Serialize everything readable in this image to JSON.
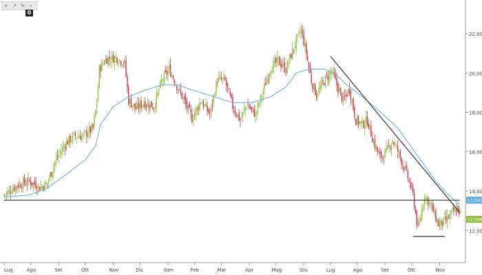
{
  "toolbar": {
    "icons": [
      "plus-icon",
      "pointer-icon",
      "pencil-icon",
      "magnifier-icon"
    ],
    "glyphs": [
      "+",
      "↗",
      "✎",
      "⌕"
    ],
    "badge": "0"
  },
  "chart_data": {
    "type": "candlestick",
    "title": "",
    "xlabel": "",
    "ylabel": "",
    "ylim": [
      10.6,
      23.0
    ],
    "grid": false,
    "legend": "none",
    "y_ticks": [
      12,
      14,
      16,
      18,
      20,
      22
    ],
    "y_tick_labels": [
      "12,00",
      "14,00",
      "16,00",
      "18,00",
      "20,00",
      "22,00"
    ],
    "x_tick_labels": [
      "Lug",
      "Ago",
      "Set",
      "Ott",
      "Nov",
      "Dic",
      "Gen",
      "Feb",
      "Mar",
      "Apr",
      "Mag",
      "Giu",
      "Lug",
      "Ago",
      "Set",
      "Ott",
      "Nov"
    ],
    "x_tick_index": [
      0,
      21,
      43,
      64,
      86,
      107,
      129,
      150,
      171,
      193,
      214,
      236,
      257,
      278,
      300,
      321,
      343
    ],
    "bar_count": 360,
    "price_path": [
      [
        0,
        13.8
      ],
      [
        10,
        14.3
      ],
      [
        20,
        14.5
      ],
      [
        28,
        14.2
      ],
      [
        34,
        14.4
      ],
      [
        40,
        15.5
      ],
      [
        48,
        16.4
      ],
      [
        55,
        16.8
      ],
      [
        62,
        16.8
      ],
      [
        70,
        17.2
      ],
      [
        73,
        18.5
      ],
      [
        75,
        20.2
      ],
      [
        80,
        20.7
      ],
      [
        88,
        20.8
      ],
      [
        95,
        20.5
      ],
      [
        98,
        18.6
      ],
      [
        104,
        18.2
      ],
      [
        110,
        18.5
      ],
      [
        118,
        18.3
      ],
      [
        124,
        19.6
      ],
      [
        130,
        20.2
      ],
      [
        138,
        19.1
      ],
      [
        143,
        18.4
      ],
      [
        148,
        17.7
      ],
      [
        155,
        18.6
      ],
      [
        162,
        17.9
      ],
      [
        168,
        19.7
      ],
      [
        174,
        19.6
      ],
      [
        180,
        18.3
      ],
      [
        186,
        17.6
      ],
      [
        191,
        18.4
      ],
      [
        198,
        17.9
      ],
      [
        203,
        18.9
      ],
      [
        210,
        20.3
      ],
      [
        216,
        20.6
      ],
      [
        222,
        20.2
      ],
      [
        228,
        21.3
      ],
      [
        234,
        22.2
      ],
      [
        238,
        21.0
      ],
      [
        242,
        19.6
      ],
      [
        246,
        18.9
      ],
      [
        252,
        19.6
      ],
      [
        258,
        20.1
      ],
      [
        262,
        19.4
      ],
      [
        267,
        18.6
      ],
      [
        272,
        19.2
      ],
      [
        277,
        17.6
      ],
      [
        282,
        17.4
      ],
      [
        286,
        17.6
      ],
      [
        291,
        16.5
      ],
      [
        296,
        15.7
      ],
      [
        301,
        16.0
      ],
      [
        306,
        16.6
      ],
      [
        311,
        15.9
      ],
      [
        317,
        14.9
      ],
      [
        322,
        13.8
      ],
      [
        326,
        12.0
      ],
      [
        331,
        13.8
      ],
      [
        336,
        13.3
      ],
      [
        342,
        12.3
      ],
      [
        348,
        12.5
      ],
      [
        353,
        12.9
      ],
      [
        357,
        13.1
      ],
      [
        359,
        12.9
      ]
    ],
    "moving_average_path": [
      [
        0,
        13.7
      ],
      [
        20,
        13.8
      ],
      [
        35,
        14.2
      ],
      [
        50,
        14.9
      ],
      [
        64,
        15.6
      ],
      [
        72,
        16.3
      ],
      [
        76,
        17.4
      ],
      [
        86,
        18.3
      ],
      [
        98,
        18.8
      ],
      [
        110,
        19.1
      ],
      [
        124,
        19.4
      ],
      [
        136,
        19.4
      ],
      [
        150,
        19.1
      ],
      [
        165,
        18.8
      ],
      [
        180,
        18.5
      ],
      [
        195,
        18.5
      ],
      [
        210,
        18.8
      ],
      [
        222,
        19.3
      ],
      [
        230,
        20.0
      ],
      [
        240,
        20.2
      ],
      [
        252,
        20.2
      ],
      [
        260,
        20.0
      ],
      [
        270,
        19.4
      ],
      [
        282,
        18.8
      ],
      [
        295,
        18.1
      ],
      [
        310,
        17.2
      ],
      [
        320,
        16.3
      ],
      [
        330,
        15.4
      ],
      [
        340,
        14.5
      ],
      [
        350,
        13.8
      ],
      [
        359,
        13.3
      ]
    ],
    "colors": {
      "up": "#8dbf3c",
      "down": "#c6354b",
      "moving_average": "#5aaee0",
      "line": "#333333"
    },
    "annotations": [
      {
        "kind": "horizontal_support",
        "from_index": 0,
        "to_index": 359,
        "y": 13.54
      },
      {
        "kind": "trendline",
        "from": [
          257,
          20.85
        ],
        "to": [
          359,
          12.9
        ]
      },
      {
        "kind": "horizontal_floor",
        "from_index": 322,
        "to_index": 347,
        "y": 11.7
      }
    ],
    "price_tags": [
      {
        "value": "13,5408",
        "y": 13.54,
        "color": "#5aaee0",
        "text_color": "#ffffff"
      },
      {
        "value": "12,568",
        "y": 12.57,
        "color": "#8dbf3c",
        "text_color": "#ffffff"
      }
    ]
  }
}
